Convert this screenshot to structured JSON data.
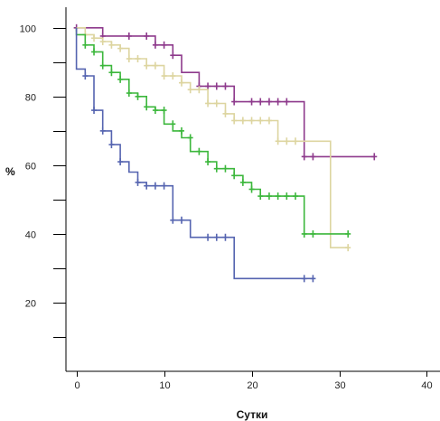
{
  "chart_data": {
    "type": "line",
    "xlabel": "Сутки",
    "ylabel": "%",
    "xlim": [
      -1.2,
      41.5
    ],
    "ylim": [
      0,
      106
    ],
    "x_ticks": [
      0,
      10,
      20,
      30,
      40
    ],
    "x_tick_labels": [
      "0",
      "10",
      "20",
      "30",
      "40"
    ],
    "y_ticks": [
      10,
      20,
      30,
      40,
      50,
      60,
      70,
      80,
      90,
      100
    ],
    "y_tick_labels": [
      "",
      "20",
      "",
      "40",
      "",
      "60",
      "",
      "80",
      "",
      "100"
    ],
    "series": [
      {
        "color": "#8e3a8c",
        "steps": [
          [
            0,
            100
          ],
          [
            3,
            100
          ],
          [
            3,
            97.6
          ],
          [
            9,
            97.6
          ],
          [
            9,
            95
          ],
          [
            11,
            95
          ],
          [
            11,
            92
          ],
          [
            12,
            92
          ],
          [
            12,
            87
          ],
          [
            14,
            87
          ],
          [
            14,
            83
          ],
          [
            18,
            83
          ],
          [
            18,
            78.5
          ],
          [
            26,
            78.5
          ],
          [
            26,
            62.5
          ],
          [
            34,
            62.5
          ]
        ],
        "censored": [
          [
            0,
            100
          ],
          [
            3,
            97.6
          ],
          [
            6,
            97.6
          ],
          [
            8,
            97.6
          ],
          [
            9,
            95
          ],
          [
            10,
            95
          ],
          [
            11,
            92
          ],
          [
            14,
            83
          ],
          [
            15,
            83
          ],
          [
            16,
            83
          ],
          [
            17,
            83
          ],
          [
            18,
            78.5
          ],
          [
            20,
            78.5
          ],
          [
            21,
            78.5
          ],
          [
            22,
            78.5
          ],
          [
            23,
            78.5
          ],
          [
            24,
            78.5
          ],
          [
            26,
            62.5
          ],
          [
            27,
            62.5
          ],
          [
            34,
            62.5
          ]
        ]
      },
      {
        "color": "#ddd5a0",
        "steps": [
          [
            0,
            100
          ],
          [
            1,
            100
          ],
          [
            1,
            98
          ],
          [
            2,
            98
          ],
          [
            2,
            97
          ],
          [
            3,
            97
          ],
          [
            3,
            96
          ],
          [
            4,
            96
          ],
          [
            4,
            95
          ],
          [
            5,
            95
          ],
          [
            5,
            94
          ],
          [
            6,
            94
          ],
          [
            6,
            91
          ],
          [
            8,
            91
          ],
          [
            8,
            89
          ],
          [
            10,
            89
          ],
          [
            10,
            86
          ],
          [
            12,
            86
          ],
          [
            12,
            84
          ],
          [
            13,
            84
          ],
          [
            13,
            82
          ],
          [
            15,
            82
          ],
          [
            15,
            78
          ],
          [
            17,
            78
          ],
          [
            17,
            75
          ],
          [
            18,
            75
          ],
          [
            18,
            73
          ],
          [
            23,
            73
          ],
          [
            23,
            67
          ],
          [
            29,
            67
          ],
          [
            29,
            36
          ],
          [
            31,
            36
          ]
        ],
        "censored": [
          [
            1,
            98
          ],
          [
            2,
            97
          ],
          [
            3,
            96
          ],
          [
            4,
            95
          ],
          [
            5,
            94
          ],
          [
            6,
            91
          ],
          [
            7,
            91
          ],
          [
            8,
            89
          ],
          [
            9,
            89
          ],
          [
            10,
            86
          ],
          [
            11,
            86
          ],
          [
            12,
            84
          ],
          [
            13,
            82
          ],
          [
            14,
            82
          ],
          [
            15,
            78
          ],
          [
            16,
            78
          ],
          [
            17,
            75
          ],
          [
            18,
            73
          ],
          [
            19,
            73
          ],
          [
            20,
            73
          ],
          [
            21,
            73
          ],
          [
            22,
            73
          ],
          [
            23,
            67
          ],
          [
            24,
            67
          ],
          [
            25,
            67
          ],
          [
            31,
            36
          ]
        ]
      },
      {
        "color": "#3cb73c",
        "steps": [
          [
            0,
            100
          ],
          [
            0,
            98
          ],
          [
            1,
            98
          ],
          [
            1,
            95
          ],
          [
            2,
            95
          ],
          [
            2,
            93
          ],
          [
            3,
            93
          ],
          [
            3,
            89
          ],
          [
            4,
            89
          ],
          [
            4,
            87
          ],
          [
            5,
            87
          ],
          [
            5,
            85
          ],
          [
            6,
            85
          ],
          [
            6,
            81
          ],
          [
            7,
            81
          ],
          [
            7,
            80
          ],
          [
            8,
            80
          ],
          [
            8,
            77
          ],
          [
            9,
            77
          ],
          [
            9,
            76
          ],
          [
            10,
            76
          ],
          [
            10,
            72
          ],
          [
            11,
            72
          ],
          [
            11,
            70
          ],
          [
            12,
            70
          ],
          [
            12,
            68
          ],
          [
            13,
            68
          ],
          [
            13,
            64
          ],
          [
            15,
            64
          ],
          [
            15,
            61
          ],
          [
            16,
            61
          ],
          [
            16,
            59
          ],
          [
            18,
            59
          ],
          [
            18,
            57
          ],
          [
            19,
            57
          ],
          [
            19,
            55
          ],
          [
            20,
            55
          ],
          [
            20,
            53
          ],
          [
            21,
            53
          ],
          [
            21,
            51
          ],
          [
            26,
            51
          ],
          [
            26,
            40
          ],
          [
            31,
            40
          ]
        ],
        "censored": [
          [
            1,
            95
          ],
          [
            2,
            93
          ],
          [
            3,
            89
          ],
          [
            4,
            87
          ],
          [
            5,
            85
          ],
          [
            6,
            81
          ],
          [
            7,
            80
          ],
          [
            8,
            77
          ],
          [
            9,
            76
          ],
          [
            10,
            76
          ],
          [
            11,
            72
          ],
          [
            12,
            70
          ],
          [
            13,
            68
          ],
          [
            14,
            64
          ],
          [
            15,
            61
          ],
          [
            16,
            59
          ],
          [
            17,
            59
          ],
          [
            18,
            57
          ],
          [
            19,
            55
          ],
          [
            20,
            53
          ],
          [
            21,
            51
          ],
          [
            22,
            51
          ],
          [
            23,
            51
          ],
          [
            24,
            51
          ],
          [
            25,
            51
          ],
          [
            26,
            40
          ],
          [
            27,
            40
          ],
          [
            31,
            40
          ]
        ]
      },
      {
        "color": "#5564b0",
        "steps": [
          [
            0,
            100
          ],
          [
            0,
            88
          ],
          [
            1,
            88
          ],
          [
            1,
            86
          ],
          [
            2,
            86
          ],
          [
            2,
            76
          ],
          [
            3,
            76
          ],
          [
            3,
            70
          ],
          [
            4,
            70
          ],
          [
            4,
            66
          ],
          [
            5,
            66
          ],
          [
            5,
            61
          ],
          [
            6,
            61
          ],
          [
            6,
            58
          ],
          [
            7,
            58
          ],
          [
            7,
            55
          ],
          [
            8,
            55
          ],
          [
            8,
            54
          ],
          [
            11,
            54
          ],
          [
            11,
            44
          ],
          [
            13,
            44
          ],
          [
            13,
            39
          ],
          [
            18,
            39
          ],
          [
            18,
            27
          ],
          [
            27,
            27
          ]
        ],
        "censored": [
          [
            1,
            86
          ],
          [
            2,
            76
          ],
          [
            3,
            70
          ],
          [
            4,
            66
          ],
          [
            5,
            61
          ],
          [
            7,
            55
          ],
          [
            8,
            54
          ],
          [
            9,
            54
          ],
          [
            10,
            54
          ],
          [
            11,
            44
          ],
          [
            12,
            44
          ],
          [
            15,
            39
          ],
          [
            16,
            39
          ],
          [
            17,
            39
          ],
          [
            26,
            27
          ],
          [
            27,
            27
          ]
        ]
      }
    ]
  }
}
